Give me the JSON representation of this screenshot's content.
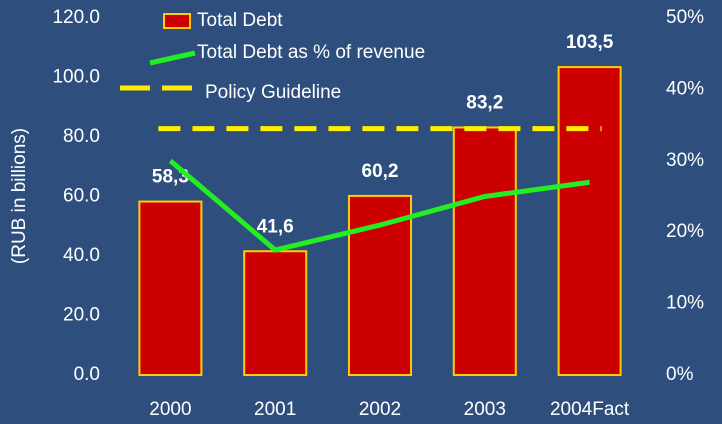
{
  "chart_data": {
    "type": "bar",
    "y_label": "(RUB in billions)",
    "categories": [
      "2000",
      "2001",
      "2002",
      "2003",
      "2004Fact"
    ],
    "series": [
      {
        "name": "Total Debt",
        "color": "#cc0000",
        "values": [
          58.3,
          41.6,
          60.2,
          83.2,
          103.5
        ],
        "value_labels": [
          "58,3",
          "41,6",
          "60,2",
          "83,2",
          "103,5"
        ]
      },
      {
        "name": "Total Debt as % of revenue",
        "color": "#22ee22",
        "type": "line",
        "axis": "y2",
        "values": [
          30,
          17.5,
          21,
          25,
          27
        ]
      }
    ],
    "guideline": {
      "name": "Policy Guideline",
      "color": "#ffee00",
      "value": 34.5,
      "axis": "y2"
    },
    "ylim": [
      0,
      120
    ],
    "yticks": [
      {
        "value": 0,
        "label": "0.0"
      },
      {
        "value": 20,
        "label": "20.0"
      },
      {
        "value": 40,
        "label": "40.0"
      },
      {
        "value": 60,
        "label": "60.0"
      },
      {
        "value": 80,
        "label": "80.0"
      },
      {
        "value": 100,
        "label": "100.0"
      },
      {
        "value": 120,
        "label": "120.0"
      }
    ],
    "y2lim": [
      0,
      50
    ],
    "y2ticks": [
      {
        "value": 0,
        "label": "0%"
      },
      {
        "value": 10,
        "label": "10%"
      },
      {
        "value": 20,
        "label": "20%"
      },
      {
        "value": 30,
        "label": "30%"
      },
      {
        "value": 40,
        "label": "40%"
      },
      {
        "value": 50,
        "label": "50%"
      }
    ]
  }
}
